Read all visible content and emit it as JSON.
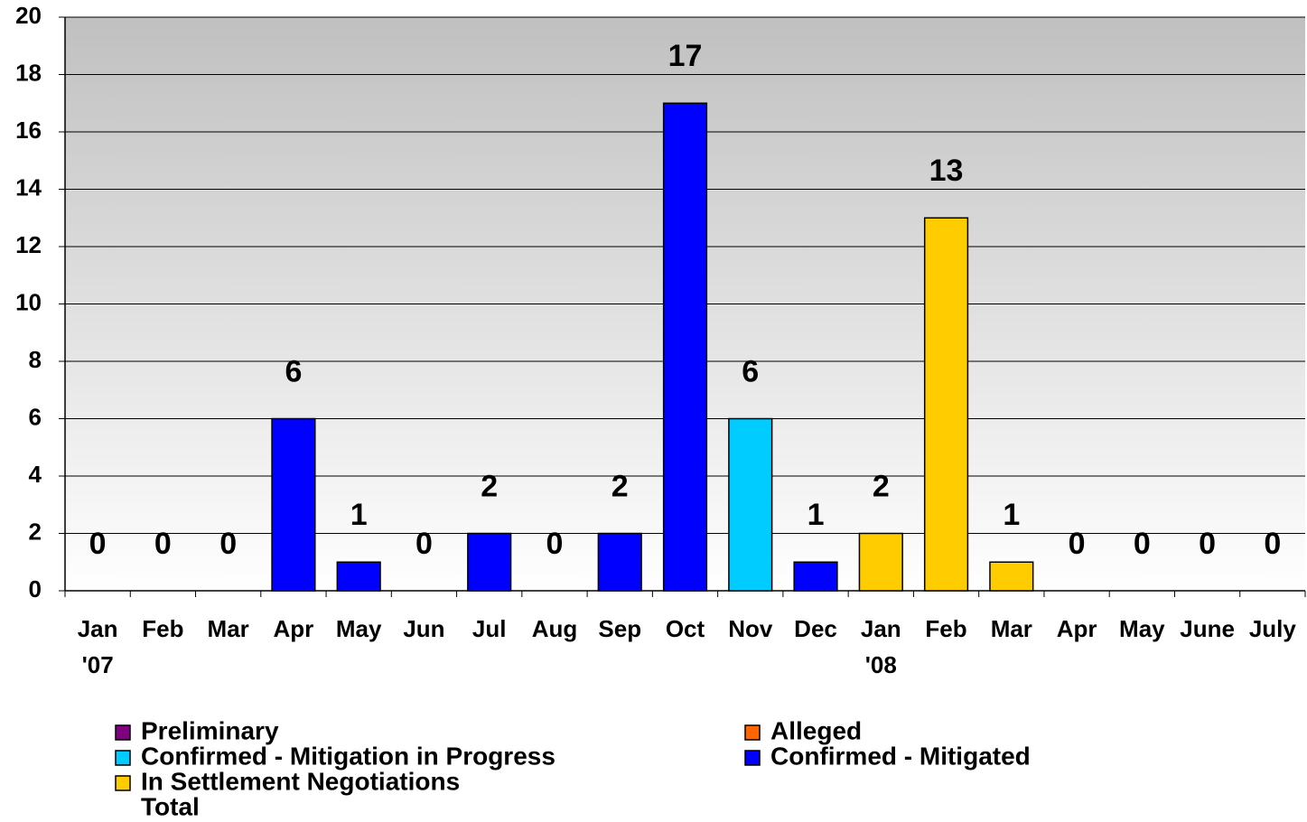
{
  "chart_data": {
    "type": "bar",
    "stacked": true,
    "categories": [
      "Jan '07",
      "Feb",
      "Mar",
      "Apr",
      "May",
      "Jun",
      "Jul",
      "Aug",
      "Sep",
      "Oct",
      "Nov",
      "Dec",
      "Jan '08",
      "Feb",
      "Mar",
      "Apr",
      "May",
      "June",
      "July"
    ],
    "series": [
      {
        "name": "Preliminary",
        "color": "#800080",
        "values": [
          0,
          0,
          0,
          0,
          0,
          0,
          0,
          0,
          0,
          0,
          0,
          0,
          0,
          0,
          0,
          0,
          0,
          0,
          0
        ]
      },
      {
        "name": "Alleged",
        "color": "#ff6600",
        "values": [
          0,
          0,
          0,
          0,
          0,
          0,
          0,
          0,
          0,
          0,
          0,
          0,
          0,
          0,
          0,
          0,
          0,
          0,
          0
        ]
      },
      {
        "name": "Confirmed - Mitigation in Progress",
        "color": "#00ccff",
        "values": [
          0,
          0,
          0,
          0,
          0,
          0,
          0,
          0,
          0,
          0,
          6,
          0,
          0,
          0,
          0,
          0,
          0,
          0,
          0
        ]
      },
      {
        "name": "Confirmed - Mitigated",
        "color": "#0000ff",
        "values": [
          0,
          0,
          0,
          6,
          1,
          0,
          2,
          0,
          2,
          17,
          0,
          1,
          0,
          0,
          0,
          0,
          0,
          0,
          0
        ]
      },
      {
        "name": "In Settlement Negotiations",
        "color": "#ffcc00",
        "values": [
          0,
          0,
          0,
          0,
          0,
          0,
          0,
          0,
          0,
          0,
          0,
          0,
          2,
          13,
          1,
          0,
          0,
          0,
          0
        ]
      },
      {
        "name": "Total",
        "color": null,
        "values": [
          0,
          0,
          0,
          6,
          1,
          0,
          2,
          0,
          2,
          17,
          6,
          1,
          2,
          13,
          1,
          0,
          0,
          0,
          0
        ]
      }
    ],
    "ylim": [
      0,
      20
    ],
    "yticks": [
      0,
      2,
      4,
      6,
      8,
      10,
      12,
      14,
      16,
      18,
      20
    ],
    "grid": true
  }
}
